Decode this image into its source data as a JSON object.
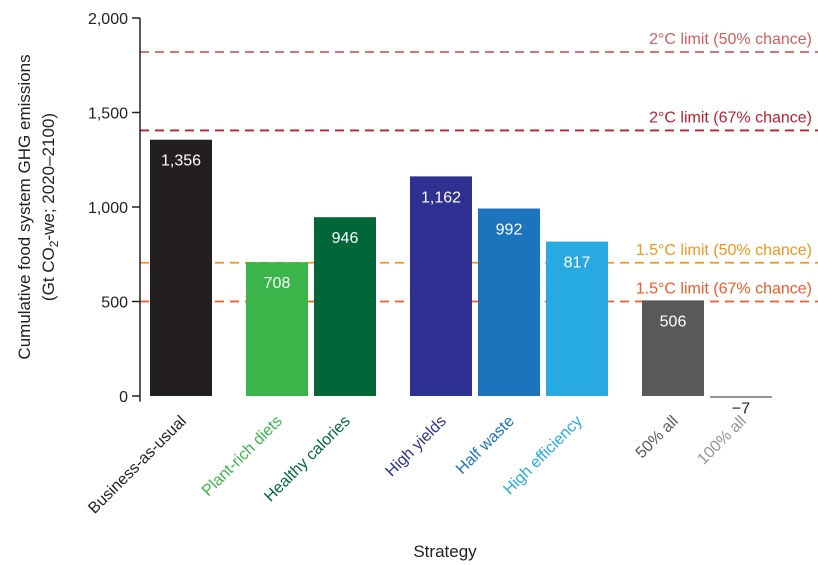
{
  "chart_data": {
    "type": "bar",
    "ylabel_line1": "Cumulative food system GHG emissions",
    "ylabel_line2_pre": "(Gt CO",
    "ylabel_line2_sub": "2",
    "ylabel_line2_post": "-we; 2020–2100)",
    "xlabel": "Strategy",
    "ylim": [
      -30,
      2000
    ],
    "yticks": [
      0,
      500,
      1000,
      1500,
      2000
    ],
    "ytick_labels": [
      "0",
      "500",
      "1,000",
      "1,500",
      "2,000"
    ],
    "categories": [
      {
        "label": "Business-as-usual",
        "value": 1356,
        "value_label": "1,356",
        "color": "#231f20",
        "label_color": "#222222"
      },
      {
        "label": "Plant-rich diets",
        "value": 708,
        "value_label": "708",
        "color": "#3bb54a",
        "label_color": "#3bb54a"
      },
      {
        "label": "Healthy calories",
        "value": 946,
        "value_label": "946",
        "color": "#006838",
        "label_color": "#006838"
      },
      {
        "label": "High yields",
        "value": 1162,
        "value_label": "1,162",
        "color": "#2e3192",
        "label_color": "#2e3192"
      },
      {
        "label": "Half waste",
        "value": 992,
        "value_label": "992",
        "color": "#1c75bc",
        "label_color": "#1c75bc"
      },
      {
        "label": "High efficiency",
        "value": 817,
        "value_label": "817",
        "color": "#27aae1",
        "label_color": "#27aae1"
      },
      {
        "label": "50% all",
        "value": 506,
        "value_label": "506",
        "color": "#58595b",
        "label_color": "#58595b"
      },
      {
        "label": "100% all",
        "value": -7,
        "value_label": "−7",
        "color": "#939598",
        "label_color": "#939598"
      }
    ],
    "limits": [
      {
        "label": "2°C limit (50% chance)",
        "value": 1820,
        "color": "#d0605e"
      },
      {
        "label": "2°C limit (67% chance)",
        "value": 1405,
        "color": "#be1e2d"
      },
      {
        "label": "1.5°C limit (50% chance)",
        "value": 705,
        "color": "#f7941d"
      },
      {
        "label": "1.5°C limit (67% chance)",
        "value": 500,
        "color": "#f15a29"
      }
    ]
  }
}
